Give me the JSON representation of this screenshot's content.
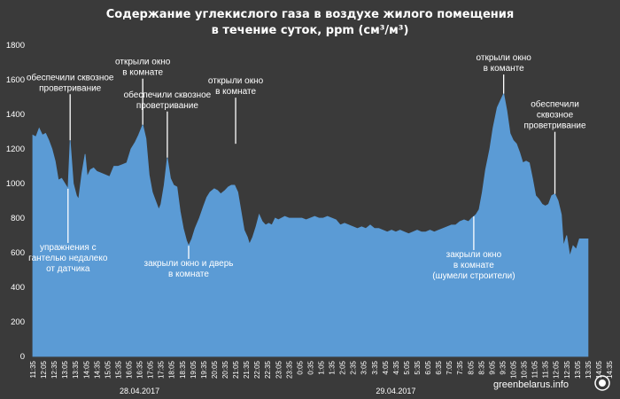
{
  "chart_data": {
    "type": "area",
    "title_line1": "Содержание углекислого газа в воздухе жилого помещения",
    "title_line2": "в течение суток, ppm (см³/м³)",
    "ylim": [
      0,
      1800
    ],
    "yticks": [
      0,
      200,
      400,
      600,
      800,
      1000,
      1200,
      1400,
      1600,
      1800
    ],
    "grid": false,
    "x_tick_labels": [
      "11:35",
      "12:05",
      "12:35",
      "13:05",
      "13:35",
      "14:05",
      "14:35",
      "15:05",
      "15:35",
      "16:05",
      "16:35",
      "17:05",
      "17:35",
      "18:05",
      "18:35",
      "19:05",
      "19:35",
      "20:05",
      "20:35",
      "21:05",
      "21:35",
      "22:05",
      "22:35",
      "23:05",
      "23:35",
      "0:05",
      "0:35",
      "1:05",
      "1:35",
      "2:05",
      "2:35",
      "3:05",
      "3:35",
      "4:05",
      "4:35",
      "5:05",
      "5:35",
      "6:05",
      "6:35",
      "7:05",
      "7:35",
      "8:05",
      "8:35",
      "9:05",
      "9:35",
      "10:05",
      "10:35",
      "11:05",
      "11:35",
      "12:05",
      "12:35",
      "13:05",
      "13:35",
      "14:05",
      "14:35"
    ],
    "dates": [
      {
        "label": "28.04.2017",
        "at_tick": 10
      },
      {
        "label": "29.04.2017",
        "at_tick": 34
      }
    ],
    "series": [
      {
        "color": "#5b9bd5",
        "values": [
          [
            0,
            1280
          ],
          [
            0.3,
            1270
          ],
          [
            0.6,
            1320
          ],
          [
            0.9,
            1280
          ],
          [
            1.2,
            1290
          ],
          [
            1.5,
            1250
          ],
          [
            1.8,
            1200
          ],
          [
            2.1,
            1130
          ],
          [
            2.4,
            1020
          ],
          [
            2.7,
            1030
          ],
          [
            3.0,
            1000
          ],
          [
            3.3,
            970
          ],
          [
            3.5,
            1250
          ],
          [
            3.8,
            1000
          ],
          [
            4.1,
            930
          ],
          [
            4.3,
            910
          ],
          [
            4.6,
            1060
          ],
          [
            4.9,
            1170
          ],
          [
            5.1,
            1040
          ],
          [
            5.4,
            1080
          ],
          [
            5.7,
            1090
          ],
          [
            6.0,
            1070
          ],
          [
            6.4,
            1060
          ],
          [
            6.8,
            1050
          ],
          [
            7.2,
            1040
          ],
          [
            7.6,
            1100
          ],
          [
            8.0,
            1100
          ],
          [
            8.4,
            1110
          ],
          [
            8.8,
            1120
          ],
          [
            9.2,
            1200
          ],
          [
            9.6,
            1240
          ],
          [
            9.9,
            1280
          ],
          [
            10.3,
            1340
          ],
          [
            10.6,
            1260
          ],
          [
            10.9,
            1050
          ],
          [
            11.2,
            950
          ],
          [
            11.5,
            900
          ],
          [
            11.8,
            850
          ],
          [
            12.0,
            880
          ],
          [
            12.3,
            990
          ],
          [
            12.6,
            1150
          ],
          [
            12.9,
            1030
          ],
          [
            13.2,
            990
          ],
          [
            13.5,
            980
          ],
          [
            13.8,
            840
          ],
          [
            14.1,
            740
          ],
          [
            14.4,
            670
          ],
          [
            14.6,
            640
          ],
          [
            14.9,
            680
          ],
          [
            15.2,
            740
          ],
          [
            15.6,
            800
          ],
          [
            16.0,
            870
          ],
          [
            16.3,
            920
          ],
          [
            16.6,
            950
          ],
          [
            17.0,
            970
          ],
          [
            17.3,
            960
          ],
          [
            17.6,
            940
          ],
          [
            18.0,
            960
          ],
          [
            18.3,
            980
          ],
          [
            18.6,
            990
          ],
          [
            18.9,
            990
          ],
          [
            19.2,
            950
          ],
          [
            19.5,
            840
          ],
          [
            19.8,
            730
          ],
          [
            20.1,
            690
          ],
          [
            20.3,
            650
          ],
          [
            20.6,
            690
          ],
          [
            20.9,
            750
          ],
          [
            21.2,
            820
          ],
          [
            21.5,
            780
          ],
          [
            21.8,
            760
          ],
          [
            22.1,
            770
          ],
          [
            22.4,
            760
          ],
          [
            22.7,
            800
          ],
          [
            23.0,
            790
          ],
          [
            23.3,
            800
          ],
          [
            23.6,
            810
          ],
          [
            24.0,
            800
          ],
          [
            24.4,
            800
          ],
          [
            24.8,
            800
          ],
          [
            25.2,
            800
          ],
          [
            25.6,
            790
          ],
          [
            26.0,
            800
          ],
          [
            26.4,
            810
          ],
          [
            26.8,
            800
          ],
          [
            27.2,
            800
          ],
          [
            27.6,
            810
          ],
          [
            28.0,
            800
          ],
          [
            28.4,
            790
          ],
          [
            28.8,
            760
          ],
          [
            29.2,
            770
          ],
          [
            29.6,
            760
          ],
          [
            30.0,
            750
          ],
          [
            30.4,
            740
          ],
          [
            30.8,
            750
          ],
          [
            31.2,
            740
          ],
          [
            31.6,
            760
          ],
          [
            32.0,
            740
          ],
          [
            32.4,
            740
          ],
          [
            32.8,
            730
          ],
          [
            33.2,
            720
          ],
          [
            33.6,
            730
          ],
          [
            34.0,
            720
          ],
          [
            34.4,
            730
          ],
          [
            34.8,
            720
          ],
          [
            35.2,
            710
          ],
          [
            35.6,
            720
          ],
          [
            36.0,
            730
          ],
          [
            36.4,
            720
          ],
          [
            36.8,
            720
          ],
          [
            37.2,
            730
          ],
          [
            37.6,
            720
          ],
          [
            38.0,
            730
          ],
          [
            38.4,
            740
          ],
          [
            38.8,
            750
          ],
          [
            39.2,
            760
          ],
          [
            39.6,
            760
          ],
          [
            40.0,
            780
          ],
          [
            40.4,
            790
          ],
          [
            40.8,
            780
          ],
          [
            41.1,
            800
          ],
          [
            41.5,
            820
          ],
          [
            41.8,
            850
          ],
          [
            42.1,
            950
          ],
          [
            42.4,
            1080
          ],
          [
            42.8,
            1200
          ],
          [
            43.1,
            1320
          ],
          [
            43.5,
            1440
          ],
          [
            43.8,
            1480
          ],
          [
            44.1,
            1520
          ],
          [
            44.4,
            1420
          ],
          [
            44.7,
            1290
          ],
          [
            45.0,
            1250
          ],
          [
            45.3,
            1230
          ],
          [
            45.6,
            1180
          ],
          [
            45.9,
            1120
          ],
          [
            46.2,
            1130
          ],
          [
            46.5,
            1120
          ],
          [
            46.8,
            1030
          ],
          [
            47.1,
            930
          ],
          [
            47.4,
            910
          ],
          [
            47.7,
            880
          ],
          [
            48.0,
            870
          ],
          [
            48.3,
            880
          ],
          [
            48.6,
            930
          ],
          [
            48.9,
            940
          ],
          [
            49.2,
            900
          ],
          [
            49.5,
            820
          ],
          [
            49.7,
            640
          ],
          [
            50.0,
            700
          ],
          [
            50.3,
            580
          ],
          [
            50.6,
            640
          ],
          [
            50.9,
            620
          ],
          [
            51.2,
            680
          ],
          [
            51.5,
            680
          ],
          [
            51.8,
            680
          ],
          [
            52.0,
            680
          ]
        ]
      }
    ],
    "annotations": [
      {
        "lines": [
          "обеспечили сквозное",
          "проветривание"
        ],
        "x": 3.5,
        "y": 1250,
        "side": "above"
      },
      {
        "lines": [
          "упражнения с",
          "гантелью недалеко",
          "от датчика"
        ],
        "x": 3.3,
        "y": 970,
        "side": "below"
      },
      {
        "lines": [
          "открыли окно",
          "в комнате"
        ],
        "x": 10.3,
        "y": 1340,
        "side": "above"
      },
      {
        "lines": [
          "обеспечили сквозное",
          "проветривание"
        ],
        "x": 12.6,
        "y": 1150,
        "side": "above"
      },
      {
        "lines": [
          "закрыли окно и дверь",
          "в комнате"
        ],
        "x": 14.6,
        "y": 640,
        "side": "below"
      },
      {
        "lines": [
          "открыли окно",
          "в комнате"
        ],
        "x": 19.0,
        "y": 1230,
        "side": "above"
      },
      {
        "lines": [
          "закрыли окно",
          "в комнате",
          "(шумели строители)"
        ],
        "x": 41.3,
        "y": 810,
        "side": "below"
      },
      {
        "lines": [
          "открыли окно",
          "в команте"
        ],
        "x": 44.1,
        "y": 1520,
        "side": "above"
      },
      {
        "lines": [
          "обеспечили",
          "сквозное",
          "проветривание"
        ],
        "x": 48.9,
        "y": 940,
        "side": "above"
      }
    ]
  },
  "watermark": "greenbelarus.info"
}
